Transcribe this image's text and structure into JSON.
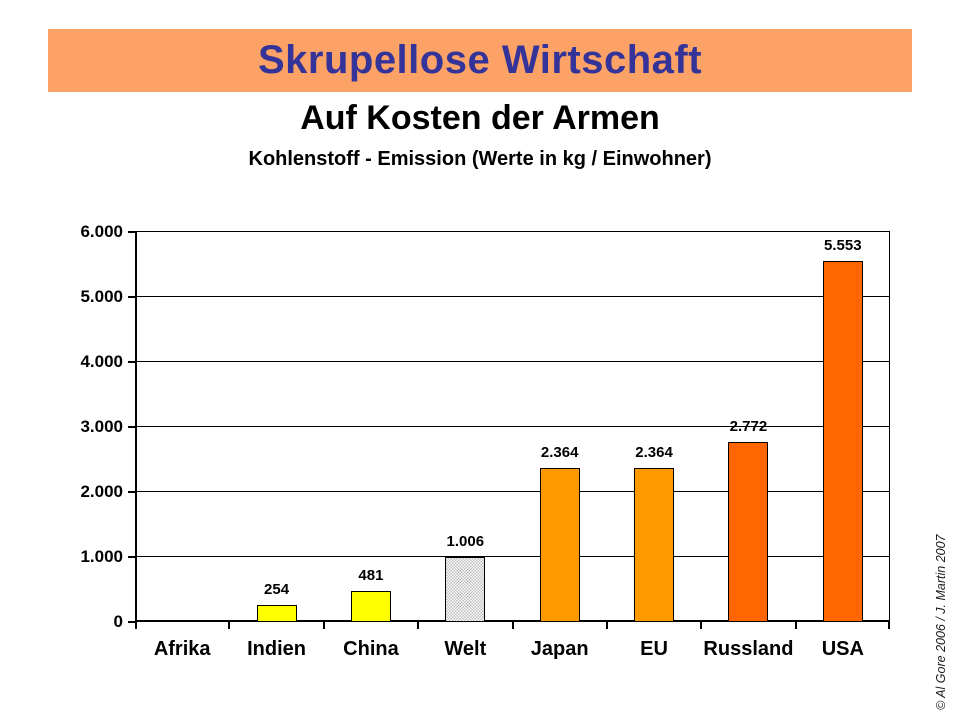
{
  "slide": {
    "banner_title": "Skrupellose Wirtschaft",
    "subtitle": "Auf Kosten der Armen",
    "chart_title": "Kohlenstoff - Emission (Werte in kg / Einwohner)",
    "credit": "© Al Gore 2006  /  J. Martin 2007"
  },
  "colors": {
    "banner_bg": "#FCA266",
    "banner_text": "#333399",
    "axis": "#000000",
    "yellow_bar": "#FFFF00",
    "orange_bar": "#FF9900",
    "red_orange_bar": "#FF6600",
    "pattern_bar_gray": "#BDBDBD"
  },
  "chart_data": {
    "type": "bar",
    "title": "Kohlenstoff - Emission (Werte in kg / Einwohner)",
    "xlabel": "",
    "ylabel": "",
    "ylim": [
      0,
      6000
    ],
    "ytick_interval": 1000,
    "ytick_labels": [
      "0",
      "1.000",
      "2.000",
      "3.000",
      "4.000",
      "5.000",
      "6.000"
    ],
    "grid": true,
    "legend": "none",
    "categories": [
      "Afrika",
      "Indien",
      "China",
      "Welt",
      "Japan",
      "EU",
      "Russland",
      "USA"
    ],
    "values": [
      0,
      254,
      481,
      1006,
      2364,
      2364,
      2772,
      5553
    ],
    "value_labels": [
      "",
      "254",
      "481",
      "1.006",
      "2.364",
      "2.364",
      "2.772",
      "5.553"
    ],
    "bar_colors": [
      "#FFFF00",
      "#FFFF00",
      "#FFFF00",
      "pattern-gray",
      "#FF9900",
      "#FF9900",
      "#FF6600",
      "#FF6600"
    ]
  }
}
